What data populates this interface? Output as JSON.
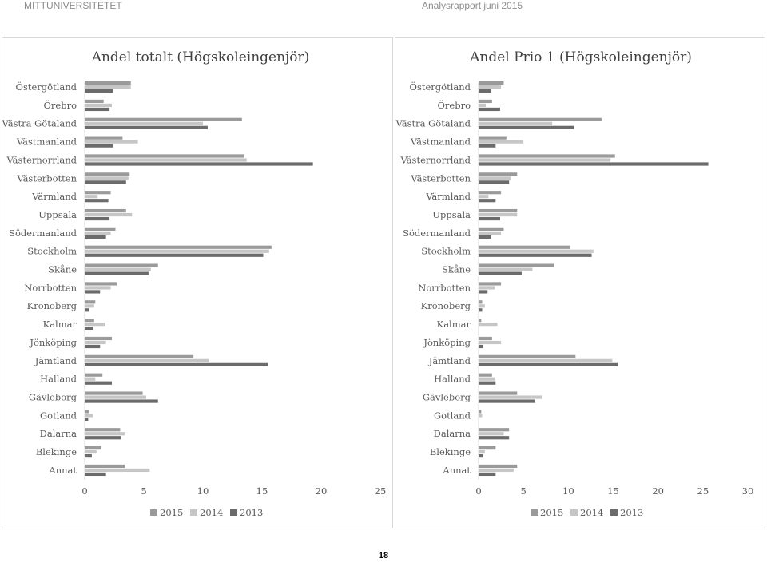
{
  "header": {
    "left": "MITTUNIVERSITETET",
    "right": "Analysrapport juni 2015"
  },
  "page_number": "18",
  "colors": {
    "2015": "#9a9a9a",
    "2014": "#c6c6c6",
    "2013": "#6b6b6b"
  },
  "chart_data": [
    {
      "type": "bar",
      "orientation": "horizontal",
      "title": "Andel totalt (Högskoleingenjör)",
      "categories": [
        "Östergötland",
        "Örebro",
        "Västra Götaland",
        "Västmanland",
        "Västernorrland",
        "Västerbotten",
        "Värmland",
        "Uppsala",
        "Södermanland",
        "Stockholm",
        "Skåne",
        "Norrbotten",
        "Kronoberg",
        "Kalmar",
        "Jönköping",
        "Jämtland",
        "Halland",
        "Gävleborg",
        "Gotland",
        "Dalarna",
        "Blekinge",
        "Annat"
      ],
      "series": [
        {
          "name": "2015",
          "values": [
            3.9,
            1.6,
            13.3,
            3.2,
            13.5,
            3.8,
            2.2,
            3.5,
            2.6,
            15.8,
            6.2,
            2.7,
            0.9,
            0.8,
            2.3,
            9.2,
            1.5,
            4.9,
            0.4,
            3.0,
            1.4,
            3.4
          ]
        },
        {
          "name": "2014",
          "values": [
            3.9,
            2.3,
            10.0,
            4.5,
            13.7,
            3.7,
            1.1,
            4.0,
            2.2,
            15.6,
            5.6,
            2.2,
            0.8,
            1.7,
            1.8,
            10.5,
            0.9,
            5.2,
            0.7,
            3.4,
            1.0,
            5.5
          ]
        },
        {
          "name": "2013",
          "values": [
            2.4,
            2.1,
            10.4,
            2.4,
            19.3,
            3.5,
            2.0,
            2.1,
            1.8,
            15.1,
            5.4,
            1.3,
            0.4,
            0.7,
            1.3,
            15.5,
            2.3,
            6.2,
            0.3,
            3.1,
            0.6,
            1.8
          ]
        }
      ],
      "xlim": [
        0,
        25
      ],
      "xticks": [
        0,
        5,
        10,
        15,
        20,
        25
      ],
      "legend": "bottom"
    },
    {
      "type": "bar",
      "orientation": "horizontal",
      "title": "Andel Prio 1 (Högskoleingenjör)",
      "categories": [
        "Östergötland",
        "Örebro",
        "Västra Götaland",
        "Västmanland",
        "Västernorrland",
        "Västerbotten",
        "Värmland",
        "Uppsala",
        "Södermanland",
        "Stockholm",
        "Skåne",
        "Norrbotten",
        "Kronoberg",
        "Kalmar",
        "Jönköping",
        "Jämtland",
        "Halland",
        "Gävleborg",
        "Gotland",
        "Dalarna",
        "Blekinge",
        "Annat"
      ],
      "series": [
        {
          "name": "2015",
          "values": [
            2.8,
            1.5,
            13.7,
            3.1,
            15.2,
            4.3,
            2.5,
            4.3,
            2.8,
            10.2,
            8.4,
            2.5,
            0.4,
            0.3,
            1.5,
            10.8,
            1.5,
            4.3,
            0.3,
            3.4,
            1.9,
            4.3
          ]
        },
        {
          "name": "2014",
          "values": [
            2.5,
            0.8,
            8.2,
            5.0,
            14.7,
            3.6,
            1.1,
            4.3,
            2.5,
            12.8,
            6.0,
            1.8,
            0.7,
            2.1,
            2.5,
            14.9,
            1.8,
            7.1,
            0.4,
            2.8,
            0.7,
            3.9
          ]
        },
        {
          "name": "2013",
          "values": [
            1.4,
            2.4,
            10.6,
            1.9,
            25.6,
            3.4,
            1.9,
            2.4,
            1.4,
            12.6,
            4.8,
            1.0,
            0.4,
            0.0,
            0.5,
            15.5,
            1.9,
            6.3,
            0.0,
            3.4,
            0.5,
            1.9
          ]
        }
      ],
      "xlim": [
        0,
        30
      ],
      "xticks": [
        0,
        5,
        10,
        15,
        20,
        25,
        30
      ],
      "legend": "bottom"
    }
  ]
}
